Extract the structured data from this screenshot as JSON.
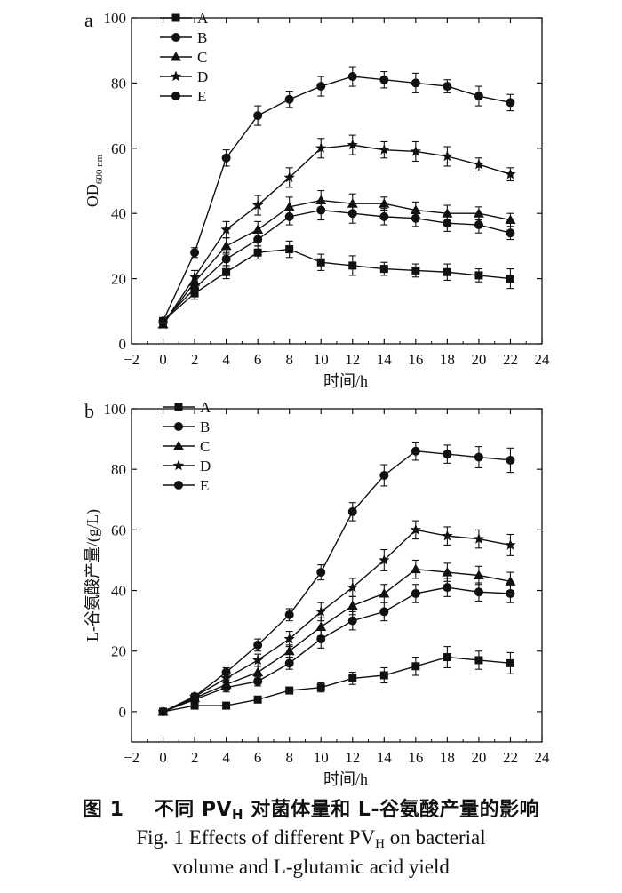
{
  "chart_data": [
    {
      "type": "line",
      "panel_label": "a",
      "ylabel_main": "OD",
      "ylabel_sub": "600 nm",
      "xlabel": "时间/h",
      "xlim": [
        -2,
        24
      ],
      "ylim": [
        0,
        100
      ],
      "xticks": [
        -2,
        0,
        2,
        4,
        6,
        8,
        10,
        12,
        14,
        16,
        18,
        20,
        22,
        24
      ],
      "yticks": [
        0,
        20,
        40,
        60,
        80,
        100
      ],
      "legend_position": "top-left",
      "x": [
        0,
        2,
        4,
        6,
        8,
        10,
        12,
        14,
        16,
        18,
        20,
        22
      ],
      "series": [
        {
          "name": "A",
          "marker": "square",
          "values": [
            7,
            15.5,
            22,
            28,
            29,
            25,
            24,
            23,
            22.5,
            22,
            21,
            20
          ],
          "errors": [
            1,
            1.8,
            2,
            2,
            2.5,
            2.5,
            3,
            2,
            2,
            2.5,
            2,
            3
          ]
        },
        {
          "name": "B",
          "marker": "circle",
          "values": [
            7,
            17,
            26,
            32,
            39,
            41,
            40,
            39,
            38.5,
            37,
            36.5,
            34
          ],
          "errors": [
            1,
            2,
            2,
            2,
            2.5,
            3,
            3,
            2.5,
            2.5,
            2.5,
            2.5,
            2
          ]
        },
        {
          "name": "C",
          "marker": "triangle",
          "values": [
            6,
            19,
            30,
            35,
            42,
            44,
            43,
            43,
            41,
            40,
            40,
            38
          ],
          "errors": [
            1,
            2,
            2.5,
            2.5,
            3,
            3,
            3,
            2,
            2.5,
            2.5,
            2,
            2
          ]
        },
        {
          "name": "D",
          "marker": "star",
          "values": [
            6,
            20.5,
            35,
            42.5,
            51,
            60,
            61,
            59.5,
            59,
            57.5,
            55,
            52
          ],
          "errors": [
            1,
            2,
            2.5,
            3,
            3,
            3,
            3,
            2.5,
            3,
            3,
            2,
            2
          ]
        },
        {
          "name": "E",
          "marker": "circle",
          "values": [
            7,
            28,
            57,
            70,
            75,
            79,
            82,
            81,
            80,
            79,
            76,
            74
          ],
          "errors": [
            1,
            1.5,
            2.5,
            3,
            2.5,
            3,
            3,
            2.5,
            3,
            2,
            3,
            2.5
          ]
        }
      ]
    },
    {
      "type": "line",
      "panel_label": "b",
      "ylabel_main": "L-谷氨酸产量/(g/L)",
      "xlabel": "时间/h",
      "xlim": [
        -2,
        24
      ],
      "ylim": [
        -10,
        100
      ],
      "xticks": [
        -2,
        0,
        2,
        4,
        6,
        8,
        10,
        12,
        14,
        16,
        18,
        20,
        22,
        24
      ],
      "yticks": [
        0,
        20,
        40,
        60,
        80,
        100
      ],
      "legend_position": "top-left",
      "x": [
        0,
        2,
        4,
        6,
        8,
        10,
        12,
        14,
        16,
        18,
        20,
        22
      ],
      "series": [
        {
          "name": "A",
          "marker": "square",
          "values": [
            0,
            2,
            2,
            4,
            7,
            8,
            11,
            12,
            15,
            18,
            17,
            16
          ],
          "errors": [
            0.5,
            0.8,
            0.8,
            1,
            1,
            1.5,
            2,
            2.5,
            3,
            3.5,
            3,
            3.5
          ]
        },
        {
          "name": "B",
          "marker": "circle",
          "values": [
            0,
            4,
            8,
            10,
            16,
            24,
            30,
            33,
            39,
            41,
            39.5,
            39
          ],
          "errors": [
            0.5,
            1,
            1.5,
            1.5,
            2,
            3,
            3,
            3,
            3,
            3,
            3,
            3
          ]
        },
        {
          "name": "C",
          "marker": "triangle",
          "values": [
            0,
            4.5,
            9,
            13,
            20,
            28,
            35,
            39,
            47,
            46,
            45,
            43
          ],
          "errors": [
            0.5,
            1,
            1.5,
            2,
            2,
            3,
            3,
            3,
            3,
            3,
            3,
            3
          ]
        },
        {
          "name": "D",
          "marker": "star",
          "values": [
            0,
            5,
            11,
            17,
            24,
            33,
            41,
            50,
            60,
            58,
            57,
            55
          ],
          "errors": [
            0.5,
            1,
            1.5,
            2,
            2.5,
            3,
            3,
            3.5,
            3,
            3,
            3,
            3.5
          ]
        },
        {
          "name": "E",
          "marker": "circle",
          "values": [
            0,
            5,
            13,
            22,
            32,
            46,
            66,
            78,
            86,
            85,
            84,
            83
          ],
          "errors": [
            0.5,
            1,
            1.5,
            2,
            2,
            2.5,
            3,
            3.5,
            3,
            3,
            3.5,
            4
          ]
        }
      ]
    }
  ],
  "caption": {
    "cn_prefix": "图 1",
    "cn_a": "不同 PV",
    "cn_sub": "H",
    "cn_b": " 对菌体量和 L-谷氨酸产量的影响",
    "en1_a": "Fig. 1 Effects of different PV",
    "en1_sub": "H",
    "en1_b": " on bacterial",
    "en2": "volume and L-glutamic acid yield"
  }
}
